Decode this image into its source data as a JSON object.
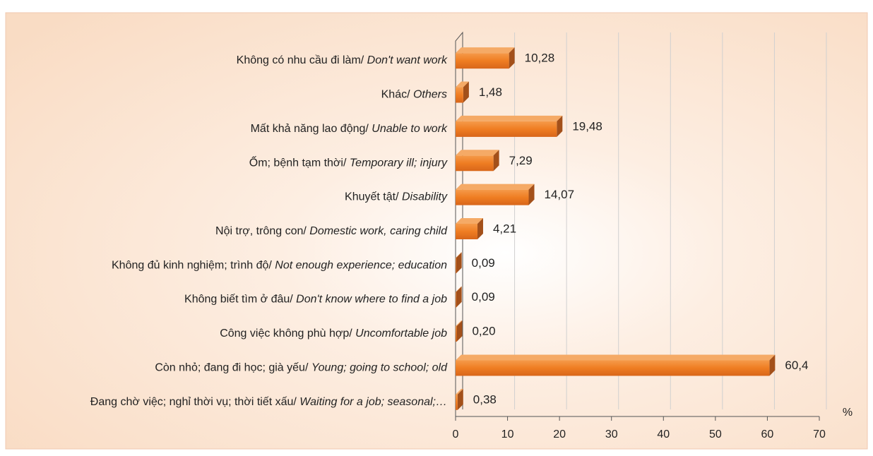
{
  "chart_data": {
    "type": "bar",
    "orientation": "horizontal",
    "categories": [
      "Không có nhu cầu đi làm/ Don't want work",
      "Khác/ Others",
      "Mất khả năng lao động/ Unable to work",
      "Ốm; bệnh tạm thời/ Temporary ill; injury",
      "Khuyết tật/ Disability",
      "Nội trợ, trông con/ Domestic work, caring child",
      "Không đủ kinh nghiệm; trình độ/ Not enough experience; education",
      "Không biết tìm ở đâu/ Don't know where to find a job",
      "Công việc không phù hợp/ Uncomfortable job",
      "Còn nhỏ; đang đi học; già yếu/ Young; going to school; old",
      "Đang chờ việc; nghỉ thời vụ; thời tiết xấu/ Waiting for a job; seasonal;…"
    ],
    "values": [
      10.28,
      1.48,
      19.48,
      7.29,
      14.07,
      4.21,
      0.09,
      0.09,
      0.2,
      60.4,
      0.38
    ],
    "value_labels": [
      "10,28",
      "1,48",
      "19,48",
      "7,29",
      "14,07",
      "4,21",
      "0,09",
      "0,09",
      "0,20",
      "60,4",
      "0,38"
    ],
    "color": "#ef7d22",
    "xlim": [
      0,
      70
    ],
    "xticks": [
      0,
      10,
      20,
      30,
      40,
      50,
      60,
      70
    ],
    "x_unit_label": "%",
    "grid": true
  }
}
